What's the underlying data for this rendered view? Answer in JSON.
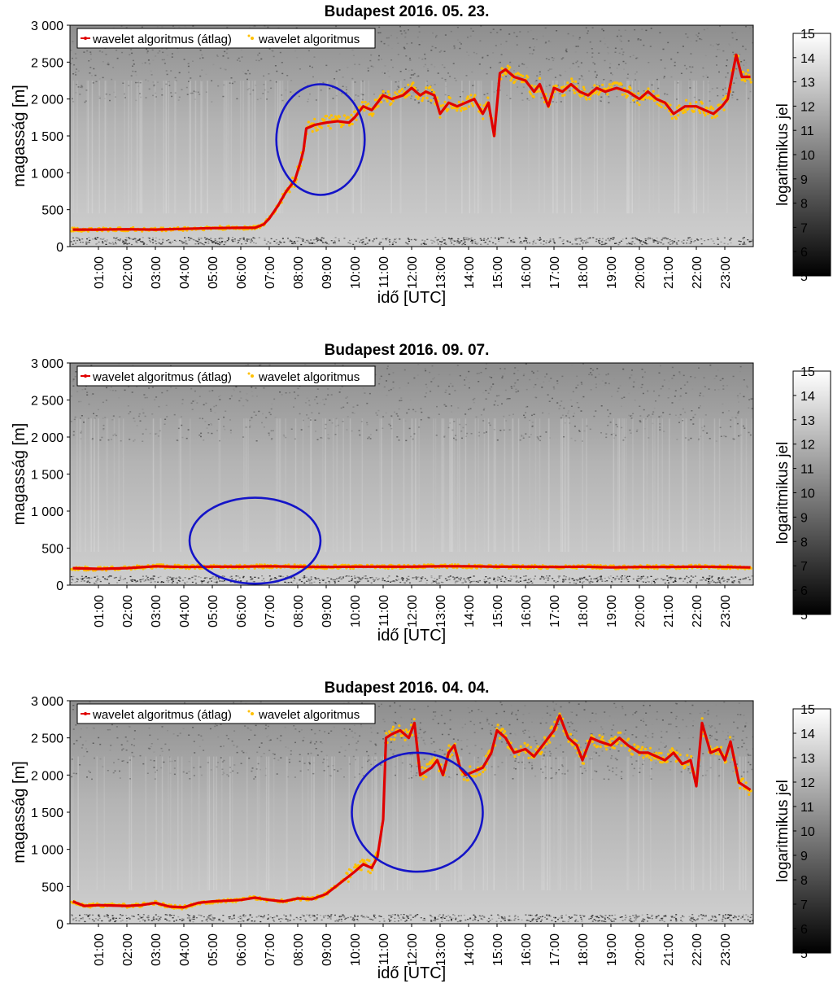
{
  "chart_data": [
    {
      "type": "line",
      "title": "Budapest 2016. 05. 23.",
      "xlabel": "idő [UTC]",
      "ylabel": "magasság [m]",
      "xlim": [
        0,
        24
      ],
      "ylim": [
        0,
        3000
      ],
      "yticks": [
        0,
        500,
        1000,
        1500,
        2000,
        2500,
        3000
      ],
      "ytick_labels": [
        "0",
        "500",
        "1 000",
        "1 500",
        "2 000",
        "2 500",
        "3 000"
      ],
      "xtick_labels": [
        "01:00",
        "02:00",
        "03:00",
        "04:00",
        "05:00",
        "06:00",
        "07:00",
        "08:00",
        "09:00",
        "10:00",
        "11:00",
        "12:00",
        "13:00",
        "14:00",
        "15:00",
        "16:00",
        "17:00",
        "18:00",
        "19:00",
        "20:00",
        "21:00",
        "22:00",
        "23:00"
      ],
      "legend": {
        "position": "top-left",
        "entries": [
          "wavelet algoritmus (átlag)",
          "wavelet algoritmus"
        ]
      },
      "colorbar": {
        "label": "logaritmikus jel",
        "min": 5,
        "max": 15,
        "ticks": [
          5,
          6,
          7,
          8,
          9,
          10,
          11,
          12,
          13,
          14,
          15
        ]
      },
      "highlight_ellipse": {
        "center": [
          8.8,
          1450
        ],
        "rx_hours": 1.55,
        "ry_m": 750,
        "color": "#1414c8"
      },
      "series": [
        {
          "name": "wavelet algoritmus (átlag)",
          "color": "#e00000",
          "x": [
            0.1,
            1,
            2,
            3,
            4,
            5,
            6,
            6.5,
            6.8,
            7,
            7.3,
            7.6,
            7.9,
            8.1,
            8.2,
            8.3,
            8.6,
            9,
            9.4,
            9.8,
            10,
            10.3,
            10.6,
            11,
            11.3,
            11.7,
            12,
            12.3,
            12.5,
            12.8,
            13,
            13.3,
            13.6,
            13.9,
            14.2,
            14.5,
            14.7,
            14.9,
            15.1,
            15.3,
            15.6,
            16,
            16.3,
            16.5,
            16.8,
            17,
            17.3,
            17.6,
            17.9,
            18.2,
            18.5,
            18.8,
            19.2,
            19.6,
            20,
            20.3,
            20.6,
            20.9,
            21.2,
            21.6,
            22,
            22.3,
            22.6,
            22.9,
            23.1,
            23.4,
            23.6,
            23.9
          ],
          "y": [
            230,
            230,
            235,
            230,
            240,
            250,
            255,
            255,
            300,
            380,
            550,
            750,
            900,
            1150,
            1300,
            1600,
            1650,
            1680,
            1700,
            1680,
            1750,
            1900,
            1850,
            2050,
            2000,
            2050,
            2150,
            2050,
            2100,
            2050,
            1800,
            1950,
            1900,
            1950,
            2000,
            1800,
            1950,
            1500,
            2350,
            2400,
            2300,
            2250,
            2100,
            2200,
            1900,
            2150,
            2100,
            2200,
            2100,
            2050,
            2150,
            2100,
            2150,
            2100,
            2000,
            2100,
            2000,
            1950,
            1800,
            1900,
            1900,
            1850,
            1800,
            1900,
            2000,
            2600,
            2300,
            2300
          ]
        },
        {
          "name": "wavelet algoritmus",
          "color": "#ffc000",
          "scatter_around_mean": true
        }
      ]
    },
    {
      "type": "line",
      "title": "Budapest 2016. 09. 07.",
      "xlabel": "idő [UTC]",
      "ylabel": "magasság [m]",
      "xlim": [
        0,
        24
      ],
      "ylim": [
        0,
        3000
      ],
      "yticks": [
        0,
        500,
        1000,
        1500,
        2000,
        2500,
        3000
      ],
      "ytick_labels": [
        "0",
        "500",
        "1 000",
        "1 500",
        "2 000",
        "2 500",
        "3 000"
      ],
      "xtick_labels": [
        "01:00",
        "02:00",
        "03:00",
        "04:00",
        "05:00",
        "06:00",
        "07:00",
        "08:00",
        "09:00",
        "10:00",
        "11:00",
        "12:00",
        "13:00",
        "14:00",
        "15:00",
        "16:00",
        "17:00",
        "18:00",
        "19:00",
        "20:00",
        "21:00",
        "22:00",
        "23:00"
      ],
      "legend": {
        "position": "top-left",
        "entries": [
          "wavelet algoritmus (átlag)",
          "wavelet algoritmus"
        ]
      },
      "colorbar": {
        "label": "logaritmikus jel",
        "min": 5,
        "max": 15,
        "ticks": [
          5,
          6,
          7,
          8,
          9,
          10,
          11,
          12,
          13,
          14,
          15
        ]
      },
      "highlight_ellipse": {
        "center": [
          6.5,
          600
        ],
        "rx_hours": 2.3,
        "ry_m": 580,
        "color": "#1414c8"
      },
      "series": [
        {
          "name": "wavelet algoritmus (átlag)",
          "color": "#e00000",
          "x": [
            0.1,
            1,
            2,
            3,
            4,
            5,
            6,
            7,
            8,
            9,
            10,
            11,
            12,
            13,
            14,
            15,
            16,
            17,
            18,
            19,
            20,
            21,
            22,
            23,
            23.9
          ],
          "y": [
            230,
            220,
            230,
            255,
            245,
            250,
            250,
            255,
            250,
            245,
            250,
            250,
            250,
            255,
            255,
            250,
            250,
            245,
            250,
            240,
            245,
            245,
            250,
            245,
            240
          ]
        },
        {
          "name": "wavelet algoritmus",
          "color": "#ffc000",
          "scatter_around_mean": true
        }
      ]
    },
    {
      "type": "line",
      "title": "Budapest 2016. 04. 04.",
      "xlabel": "idő [UTC]",
      "ylabel": "magasság [m]",
      "xlim": [
        0,
        24
      ],
      "ylim": [
        0,
        3000
      ],
      "yticks": [
        0,
        500,
        1000,
        1500,
        2000,
        2500,
        3000
      ],
      "ytick_labels": [
        "0",
        "500",
        "1 000",
        "1 500",
        "2 000",
        "2 500",
        "3 000"
      ],
      "xtick_labels": [
        "01:00",
        "02:00",
        "03:00",
        "04:00",
        "05:00",
        "06:00",
        "07:00",
        "08:00",
        "09:00",
        "10:00",
        "11:00",
        "12:00",
        "13:00",
        "14:00",
        "15:00",
        "16:00",
        "17:00",
        "18:00",
        "19:00",
        "20:00",
        "21:00",
        "22:00",
        "23:00"
      ],
      "legend": {
        "position": "top-left",
        "entries": [
          "wavelet algoritmus (átlag)",
          "wavelet algoritmus"
        ]
      },
      "colorbar": {
        "label": "logaritmikus jel",
        "min": 5,
        "max": 15,
        "ticks": [
          5,
          6,
          7,
          8,
          9,
          10,
          11,
          12,
          13,
          14,
          15
        ]
      },
      "highlight_ellipse": {
        "center": [
          12.2,
          1500
        ],
        "rx_hours": 2.3,
        "ry_m": 800,
        "color": "#1414c8"
      },
      "series": [
        {
          "name": "wavelet algoritmus (átlag)",
          "color": "#e00000",
          "x": [
            0.1,
            0.5,
            1,
            2,
            2.5,
            3,
            3.5,
            4,
            4.5,
            5,
            6,
            6.5,
            7,
            7.5,
            8,
            8.5,
            9,
            9.5,
            10,
            10.3,
            10.6,
            10.8,
            11,
            11.1,
            11.3,
            11.6,
            11.9,
            12.1,
            12.3,
            12.5,
            12.7,
            12.9,
            13.1,
            13.3,
            13.5,
            13.7,
            13.9,
            14.2,
            14.5,
            14.8,
            15,
            15.3,
            15.6,
            16,
            16.3,
            16.6,
            17,
            17.2,
            17.5,
            17.8,
            18,
            18.3,
            18.6,
            19,
            19.3,
            19.6,
            20,
            20.3,
            20.6,
            20.9,
            21.2,
            21.5,
            21.8,
            22,
            22.2,
            22.5,
            22.8,
            23,
            23.2,
            23.5,
            23.9
          ],
          "y": [
            300,
            240,
            250,
            240,
            250,
            280,
            230,
            220,
            280,
            300,
            320,
            350,
            320,
            300,
            340,
            330,
            400,
            550,
            700,
            800,
            750,
            900,
            1400,
            2500,
            2550,
            2600,
            2500,
            2700,
            2000,
            2050,
            2100,
            2200,
            2000,
            2300,
            2400,
            2100,
            2000,
            2050,
            2100,
            2300,
            2600,
            2500,
            2300,
            2350,
            2250,
            2400,
            2600,
            2800,
            2500,
            2400,
            2200,
            2500,
            2450,
            2400,
            2500,
            2400,
            2300,
            2300,
            2250,
            2200,
            2300,
            2150,
            2200,
            1850,
            2700,
            2300,
            2350,
            2200,
            2450,
            1900,
            1800
          ]
        },
        {
          "name": "wavelet algoritmus",
          "color": "#ffc000",
          "scatter_around_mean": true
        }
      ]
    }
  ]
}
